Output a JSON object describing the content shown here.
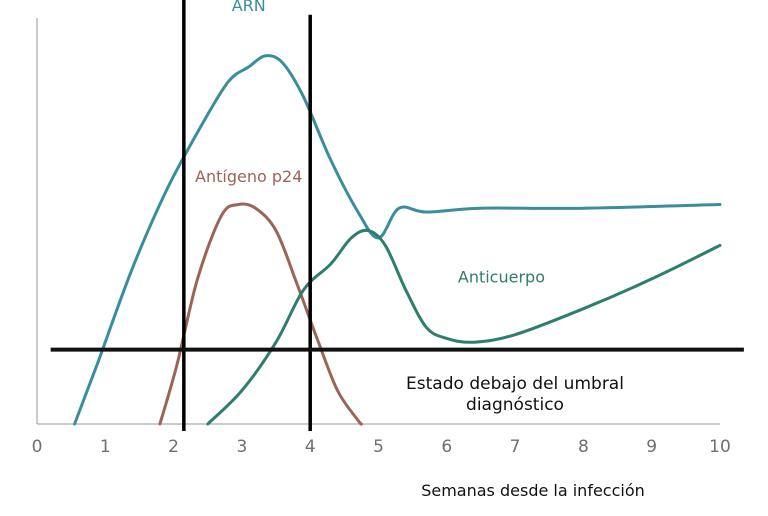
{
  "chart_data": {
    "type": "line",
    "xlabel": "Semanas desde la infección",
    "ylabel": "",
    "title": "",
    "xlim": [
      0,
      10
    ],
    "ylim": [
      0,
      10
    ],
    "x_ticks": [
      0,
      1,
      2,
      3,
      4,
      5,
      6,
      7,
      8,
      9,
      10
    ],
    "grid": false,
    "series": [
      {
        "name": "ARN",
        "color": "#3a8e9c",
        "points": [
          [
            0.55,
            0
          ],
          [
            0.9,
            1.7
          ],
          [
            1.4,
            4.2
          ],
          [
            1.9,
            6.3
          ],
          [
            2.4,
            8.0
          ],
          [
            2.8,
            9.2
          ],
          [
            3.1,
            9.6
          ],
          [
            3.35,
            9.9
          ],
          [
            3.6,
            9.7
          ],
          [
            3.9,
            8.8
          ],
          [
            4.3,
            7.1
          ],
          [
            4.7,
            5.7
          ],
          [
            5.0,
            5.0
          ],
          [
            5.3,
            5.8
          ],
          [
            5.7,
            5.7
          ],
          [
            6.5,
            5.8
          ],
          [
            8.0,
            5.8
          ],
          [
            10.0,
            5.9
          ]
        ]
      },
      {
        "name": "Antígeno p24",
        "color": "#9a6556",
        "points": [
          [
            1.8,
            0
          ],
          [
            2.05,
            1.6
          ],
          [
            2.35,
            3.9
          ],
          [
            2.7,
            5.6
          ],
          [
            2.95,
            5.9
          ],
          [
            3.2,
            5.8
          ],
          [
            3.5,
            5.2
          ],
          [
            3.8,
            3.8
          ],
          [
            4.1,
            2.3
          ],
          [
            4.4,
            0.9
          ],
          [
            4.7,
            0.1
          ],
          [
            4.75,
            0
          ]
        ]
      },
      {
        "name": "Anticuerpo",
        "color": "#2e7d6e",
        "points": [
          [
            2.5,
            0
          ],
          [
            3.0,
            0.9
          ],
          [
            3.5,
            2.2
          ],
          [
            3.9,
            3.6
          ],
          [
            4.3,
            4.3
          ],
          [
            4.6,
            5.0
          ],
          [
            4.85,
            5.2
          ],
          [
            5.1,
            4.8
          ],
          [
            5.4,
            3.6
          ],
          [
            5.7,
            2.6
          ],
          [
            6.0,
            2.3
          ],
          [
            6.4,
            2.2
          ],
          [
            7.0,
            2.4
          ],
          [
            8.0,
            3.1
          ],
          [
            9.0,
            3.9
          ],
          [
            10.0,
            4.8
          ]
        ]
      }
    ],
    "vertical_lines": [
      {
        "x": 2.15,
        "ymax": 11.7
      },
      {
        "x": 4.0,
        "ymax": 11.0
      }
    ],
    "threshold": {
      "y": 2.0,
      "x_start": 0.2,
      "x_end": 10.35,
      "label_line1": "Estado debajo del umbral",
      "label_line2": "diagnóstico",
      "color": "#111111"
    },
    "annotations": [
      {
        "text": "ARN",
        "x": 3.1,
        "y": 11.1,
        "color": "#3a8e9c"
      },
      {
        "text": "Antígeno p24",
        "x": 3.1,
        "y": 6.5,
        "color": "#9a6556"
      },
      {
        "text": "Anticuerpo",
        "x": 6.8,
        "y": 3.8,
        "color": "#2e7d6e"
      }
    ]
  }
}
